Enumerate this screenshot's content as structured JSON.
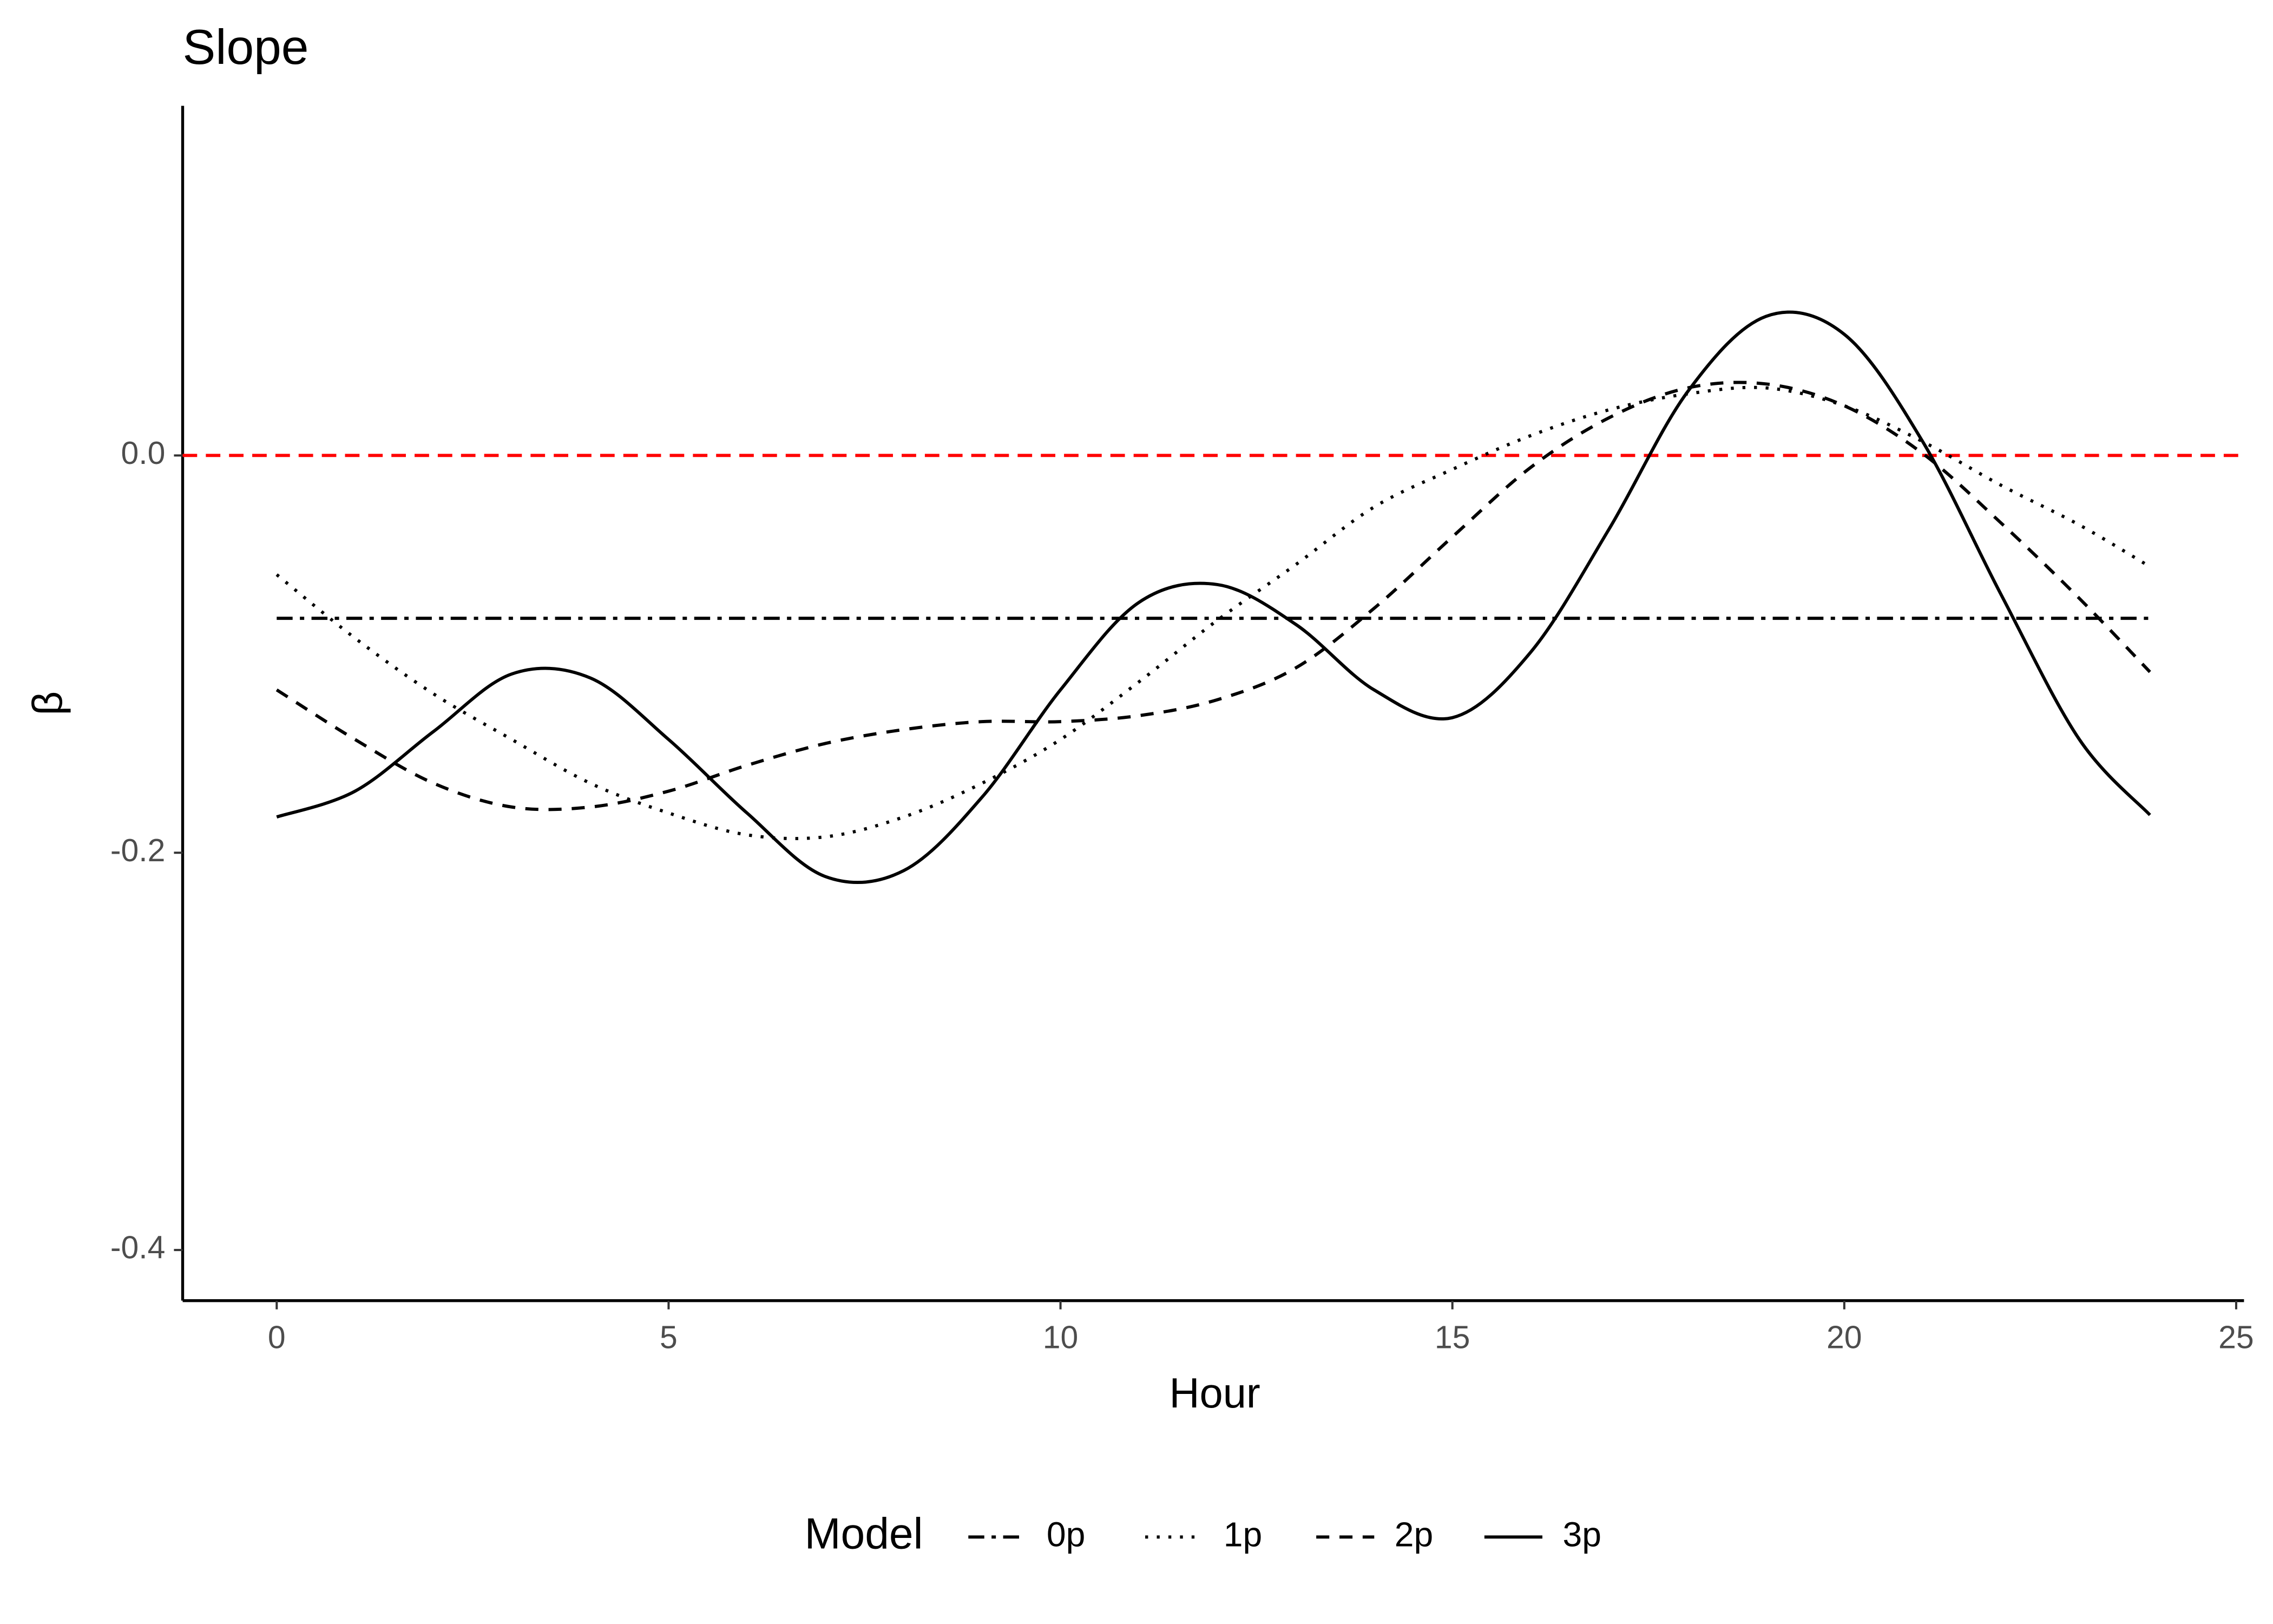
{
  "chart_data": {
    "type": "line",
    "title": "Slope",
    "xlabel": "Hour",
    "ylabel": "β",
    "legend_title": "Model",
    "legend": "bottom",
    "x": [
      0,
      1,
      2,
      3,
      4,
      5,
      6,
      7,
      8,
      9,
      10,
      11,
      12,
      13,
      14,
      15,
      16,
      17,
      18,
      19,
      20,
      21,
      22,
      23,
      23.9
    ],
    "series": [
      {
        "name": "0p",
        "color": "#000000",
        "dash": "11 5 3 5",
        "values": [
          -0.082,
          -0.082,
          -0.082,
          -0.082,
          -0.082,
          -0.082,
          -0.082,
          -0.082,
          -0.082,
          -0.082,
          -0.082,
          -0.082,
          -0.082,
          -0.082,
          -0.082,
          -0.082,
          -0.082,
          -0.082,
          -0.082,
          -0.082,
          -0.082,
          -0.082,
          -0.082,
          -0.082,
          -0.082
        ]
      },
      {
        "name": "1p",
        "color": "#000000",
        "dash": "2 6",
        "values": [
          -0.06,
          -0.092,
          -0.12,
          -0.143,
          -0.165,
          -0.18,
          -0.191,
          -0.192,
          -0.182,
          -0.165,
          -0.143,
          -0.114,
          -0.083,
          -0.055,
          -0.026,
          -0.007,
          0.01,
          0.023,
          0.031,
          0.034,
          0.025,
          0.007,
          -0.015,
          -0.035,
          -0.056
        ]
      },
      {
        "name": "2p",
        "color": "#000000",
        "dash": "9 7",
        "values": [
          -0.118,
          -0.143,
          -0.165,
          -0.177,
          -0.177,
          -0.169,
          -0.156,
          -0.145,
          -0.138,
          -0.134,
          -0.134,
          -0.131,
          -0.123,
          -0.107,
          -0.077,
          -0.041,
          -0.006,
          0.019,
          0.034,
          0.036,
          0.025,
          0.001,
          -0.034,
          -0.072,
          -0.109
        ]
      },
      {
        "name": "3p",
        "color": "#000000",
        "dash": "none",
        "values": [
          -0.182,
          -0.169,
          -0.139,
          -0.11,
          -0.112,
          -0.143,
          -0.18,
          -0.212,
          -0.209,
          -0.172,
          -0.118,
          -0.074,
          -0.065,
          -0.085,
          -0.118,
          -0.132,
          -0.099,
          -0.037,
          0.032,
          0.07,
          0.061,
          0.007,
          -0.07,
          -0.143,
          -0.181
        ]
      }
    ],
    "reference_line": {
      "value": 0,
      "color": "#ff0000",
      "dash": "10 6"
    },
    "xlim": [
      -1.2,
      25.1
    ],
    "ylim": [
      -0.4255,
      0.176
    ],
    "xticks": [
      0,
      5,
      10,
      15,
      20,
      25
    ],
    "yticks": [
      {
        "value": -0.4,
        "label": "-0.4"
      },
      {
        "value": -0.2,
        "label": "-0.2"
      },
      {
        "value": 0,
        "label": "0.0"
      }
    ],
    "grid": false
  }
}
